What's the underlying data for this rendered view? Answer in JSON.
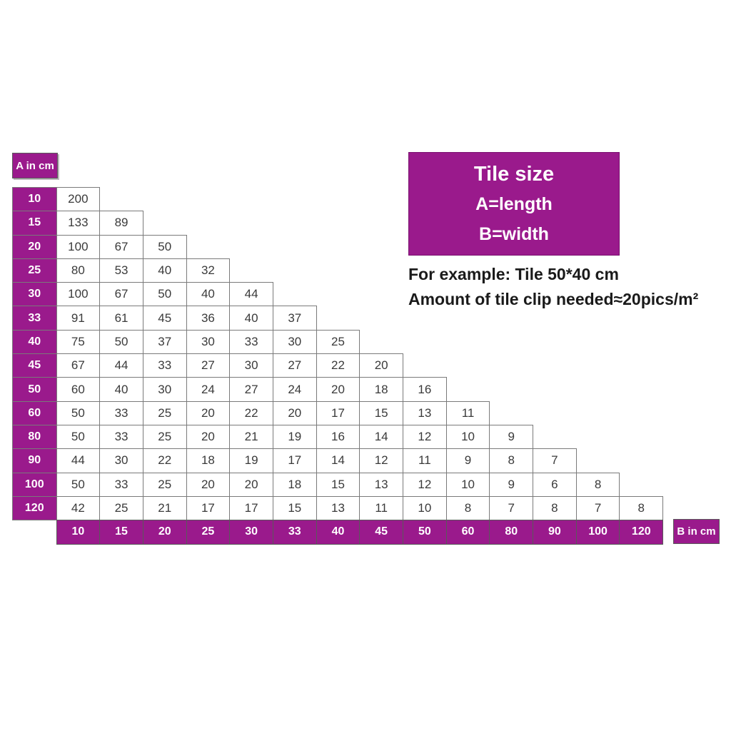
{
  "colors": {
    "purple": "#9a1a8c",
    "grid_border": "#7a7a7a",
    "value_text": "#3a3a3a"
  },
  "axis": {
    "a_label": "A in cm",
    "b_label": "B in cm"
  },
  "legend": {
    "title": "Tile size",
    "line_a": "A=length",
    "line_b": "B=width"
  },
  "example": {
    "line1": "For example: Tile 50*40 cm",
    "line2": "Amount of tile clip needed≈20pics/m²"
  },
  "chart_data": {
    "type": "table",
    "row_axis_label": "A in cm",
    "col_axis_label": "B in cm",
    "columns": [
      10,
      15,
      20,
      25,
      30,
      33,
      40,
      45,
      50,
      60,
      80,
      90,
      100,
      120
    ],
    "rows": [
      {
        "a": 10,
        "values": [
          200
        ]
      },
      {
        "a": 15,
        "values": [
          133,
          89
        ]
      },
      {
        "a": 20,
        "values": [
          100,
          67,
          50
        ]
      },
      {
        "a": 25,
        "values": [
          80,
          53,
          40,
          32
        ]
      },
      {
        "a": 30,
        "values": [
          100,
          67,
          50,
          40,
          44
        ]
      },
      {
        "a": 33,
        "values": [
          91,
          61,
          45,
          36,
          40,
          37
        ]
      },
      {
        "a": 40,
        "values": [
          75,
          50,
          37,
          30,
          33,
          30,
          25
        ]
      },
      {
        "a": 45,
        "values": [
          67,
          44,
          33,
          27,
          30,
          27,
          22,
          20
        ]
      },
      {
        "a": 50,
        "values": [
          60,
          40,
          30,
          24,
          27,
          24,
          20,
          18,
          16
        ]
      },
      {
        "a": 60,
        "values": [
          50,
          33,
          25,
          20,
          22,
          20,
          17,
          15,
          13,
          11
        ]
      },
      {
        "a": 80,
        "values": [
          50,
          33,
          25,
          20,
          21,
          19,
          16,
          14,
          12,
          10,
          9
        ]
      },
      {
        "a": 90,
        "values": [
          44,
          30,
          22,
          18,
          19,
          17,
          14,
          12,
          11,
          9,
          8,
          7
        ]
      },
      {
        "a": 100,
        "values": [
          50,
          33,
          25,
          20,
          20,
          18,
          15,
          13,
          12,
          10,
          9,
          6,
          8
        ]
      },
      {
        "a": 120,
        "values": [
          42,
          25,
          21,
          17,
          17,
          15,
          13,
          11,
          10,
          8,
          7,
          8,
          7,
          8
        ]
      }
    ]
  }
}
